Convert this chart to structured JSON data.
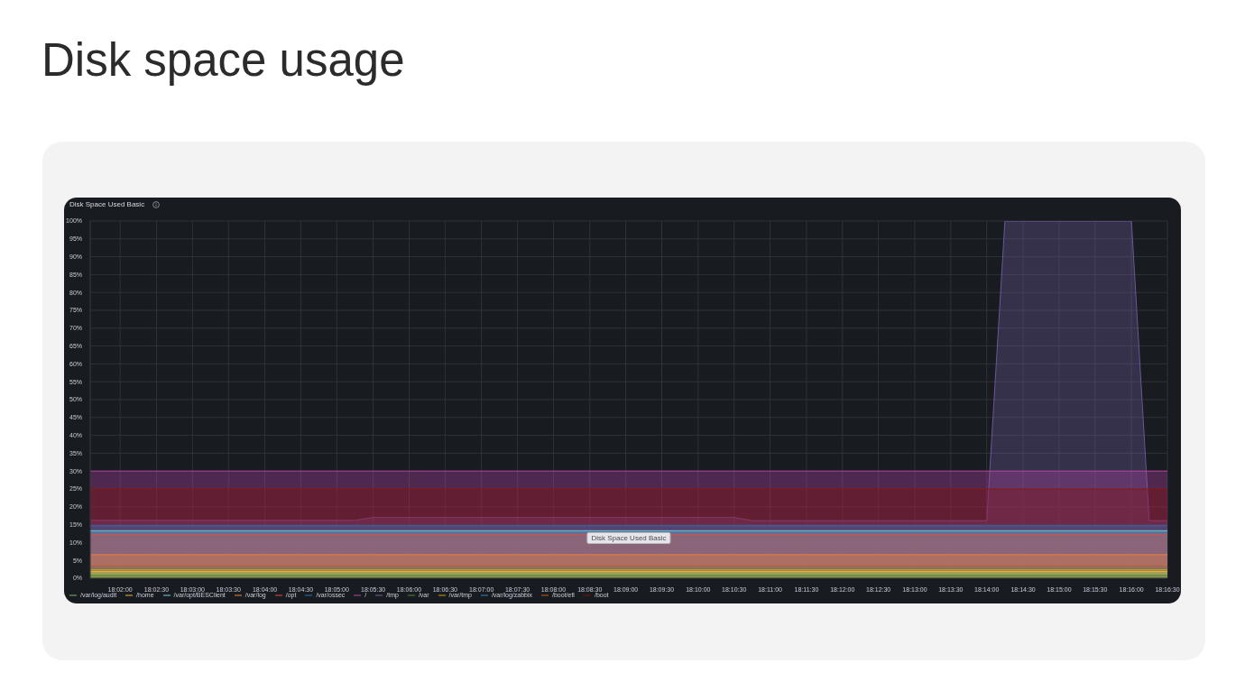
{
  "chart_data": {
    "type": "area",
    "title": "Disk space usage",
    "subtitle": "Disk Space Used Basic",
    "annotations": [
      "Disk Space Used Basic"
    ],
    "xlim": [
      18.0264,
      18.275
    ],
    "xticks": [
      {
        "value": 18.0333,
        "label": "18:02:00"
      },
      {
        "value": 18.0417,
        "label": "18:02:30"
      },
      {
        "value": 18.05,
        "label": "18:03:00"
      },
      {
        "value": 18.0583,
        "label": "18:03:30"
      },
      {
        "value": 18.0667,
        "label": "18:04:00"
      },
      {
        "value": 18.075,
        "label": "18:04:30"
      },
      {
        "value": 18.0833,
        "label": "18:05:00"
      },
      {
        "value": 18.0917,
        "label": "18:05:30"
      },
      {
        "value": 18.1,
        "label": "18:06:00"
      },
      {
        "value": 18.1083,
        "label": "18:06:30"
      },
      {
        "value": 18.1167,
        "label": "18:07:00"
      },
      {
        "value": 18.125,
        "label": "18:07:30"
      },
      {
        "value": 18.1333,
        "label": "18:08:00"
      },
      {
        "value": 18.1417,
        "label": "18:08:30"
      },
      {
        "value": 18.15,
        "label": "18:09:00"
      },
      {
        "value": 18.1583,
        "label": "18:09:30"
      },
      {
        "value": 18.1667,
        "label": "18:10:00"
      },
      {
        "value": 18.175,
        "label": "18:10:30"
      },
      {
        "value": 18.1833,
        "label": "18:11:00"
      },
      {
        "value": 18.1917,
        "label": "18:11:30"
      },
      {
        "value": 18.2,
        "label": "18:12:00"
      },
      {
        "value": 18.2083,
        "label": "18:12:30"
      },
      {
        "value": 18.2167,
        "label": "18:13:00"
      },
      {
        "value": 18.225,
        "label": "18:13:30"
      },
      {
        "value": 18.2333,
        "label": "18:14:00"
      },
      {
        "value": 18.2417,
        "label": "18:14:30"
      },
      {
        "value": 18.25,
        "label": "18:15:00"
      },
      {
        "value": 18.2583,
        "label": "18:15:30"
      },
      {
        "value": 18.2667,
        "label": "18:16:00"
      },
      {
        "value": 18.275,
        "label": "18:16:30"
      }
    ],
    "ylim": [
      0,
      100
    ],
    "yticks": [
      {
        "value": 0,
        "label": "0%"
      },
      {
        "value": 5,
        "label": "5%"
      },
      {
        "value": 10,
        "label": "10%"
      },
      {
        "value": 15,
        "label": "15%"
      },
      {
        "value": 20,
        "label": "20%"
      },
      {
        "value": 25,
        "label": "25%"
      },
      {
        "value": 30,
        "label": "30%"
      },
      {
        "value": 35,
        "label": "35%"
      },
      {
        "value": 40,
        "label": "40%"
      },
      {
        "value": 45,
        "label": "45%"
      },
      {
        "value": 50,
        "label": "50%"
      },
      {
        "value": 55,
        "label": "55%"
      },
      {
        "value": 60,
        "label": "60%"
      },
      {
        "value": 65,
        "label": "65%"
      },
      {
        "value": 70,
        "label": "70%"
      },
      {
        "value": 75,
        "label": "75%"
      },
      {
        "value": 80,
        "label": "80%"
      },
      {
        "value": 85,
        "label": "85%"
      },
      {
        "value": 90,
        "label": "90%"
      },
      {
        "value": 95,
        "label": "95%"
      },
      {
        "value": 100,
        "label": "100%"
      }
    ],
    "grid": true,
    "legend": "bottom left",
    "series": [
      {
        "name": "/var/log/audit",
        "color": "#7eb26d",
        "x": [
          18.0264,
          18.275
        ],
        "values": [
          1.3,
          1.3
        ]
      },
      {
        "name": "/home",
        "color": "#eab839",
        "x": [
          18.0264,
          18.275
        ],
        "values": [
          1.9,
          1.9
        ]
      },
      {
        "name": "/var/opt/BESClient",
        "color": "#6ed0e0",
        "x": [
          18.0264,
          18.275
        ],
        "values": [
          13.3,
          13.3
        ]
      },
      {
        "name": "/var/log",
        "color": "#ef843c",
        "x": [
          18.0264,
          18.275
        ],
        "values": [
          6.6,
          6.6
        ]
      },
      {
        "name": "/opt",
        "color": "#e24d42",
        "x": [
          18.0264,
          18.275
        ],
        "values": [
          12.2,
          12.2
        ]
      },
      {
        "name": "/var/ossec",
        "color": "#1f78c1",
        "x": [
          18.0264,
          18.275
        ],
        "values": [
          14.7,
          14.7
        ]
      },
      {
        "name": "/",
        "color": "#ba43a9",
        "x": [
          18.0264,
          18.275
        ],
        "values": [
          30,
          30
        ]
      },
      {
        "name": "/tmp",
        "color": "#705da0",
        "x": [
          18.0264,
          18.0875,
          18.0917,
          18.175,
          18.1792,
          18.2333,
          18.2375,
          18.2667,
          18.2708,
          18.275
        ],
        "values": [
          16.2,
          16.2,
          17,
          17,
          16.1,
          16.1,
          100,
          100,
          16.1,
          16.1
        ]
      },
      {
        "name": "/var",
        "color": "#508642",
        "x": [
          18.0264,
          18.275
        ],
        "values": [
          0.8,
          0.8
        ]
      },
      {
        "name": "/var/tmp",
        "color": "#cca300",
        "x": [
          18.0264,
          18.275
        ],
        "values": [
          2.4,
          2.4
        ]
      },
      {
        "name": "/var/log/zabbix",
        "color": "#447ebc",
        "x": [
          18.0264,
          18.275
        ],
        "values": [
          2.9,
          2.9
        ]
      },
      {
        "name": "/boot/efi",
        "color": "#c15c17",
        "x": [
          18.0264,
          18.275
        ],
        "values": [
          3.4,
          3.4
        ]
      },
      {
        "name": "/boot",
        "color": "#890f02",
        "x": [
          18.0264,
          18.275
        ],
        "values": [
          25,
          25
        ]
      }
    ]
  }
}
